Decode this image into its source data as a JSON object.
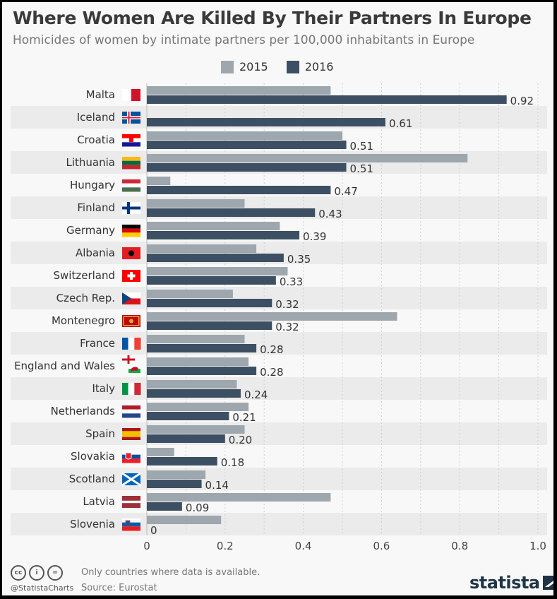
{
  "title": "Where Women Are Killed By Their Partners In Europe",
  "subtitle": "Homicides of women by intimate partners per 100,000 inhabitants in Europe",
  "colors": {
    "2015": "#9ea6ae",
    "2016": "#3d5063",
    "row_alt": "#ebebeb",
    "background": "#f8f8f8"
  },
  "chart_data": {
    "type": "bar",
    "orientation": "horizontal",
    "title": "Where Women Are Killed By Their Partners In Europe",
    "subtitle": "Homicides of women by intimate partners per 100,000 inhabitants in Europe",
    "categories": [
      "Malta",
      "Iceland",
      "Croatia",
      "Lithuania",
      "Hungary",
      "Finland",
      "Germany",
      "Albania",
      "Switzerland",
      "Czech Rep.",
      "Montenegro",
      "France",
      "England and Wales",
      "Italy",
      "Netherlands",
      "Spain",
      "Slovakia",
      "Scotland",
      "Latvia",
      "Slovenia"
    ],
    "flags": [
      "malta-flag",
      "iceland-flag",
      "croatia-flag",
      "lithuania-flag",
      "hungary-flag",
      "finland-flag",
      "germany-flag",
      "albania-flag",
      "switzerland-flag",
      "czech-flag",
      "montenegro-flag",
      "france-flag",
      "england-wales-flags",
      "italy-flag",
      "netherlands-flag",
      "spain-flag",
      "slovakia-flag",
      "scotland-flag",
      "latvia-flag",
      "slovenia-flag"
    ],
    "series": [
      {
        "name": "2015",
        "values": [
          0.47,
          null,
          0.5,
          0.82,
          0.06,
          0.25,
          0.34,
          0.28,
          0.36,
          0.22,
          0.64,
          0.25,
          0.26,
          0.23,
          0.26,
          0.25,
          0.07,
          0.15,
          0.47,
          0.19
        ]
      },
      {
        "name": "2016",
        "values": [
          0.92,
          0.61,
          0.51,
          0.51,
          0.47,
          0.43,
          0.39,
          0.35,
          0.33,
          0.32,
          0.32,
          0.28,
          0.28,
          0.24,
          0.21,
          0.2,
          0.18,
          0.14,
          0.09,
          0
        ]
      }
    ],
    "data_labels": [
      "0.92",
      "0.61",
      "0.51",
      "0.51",
      "0.47",
      "0.43",
      "0.39",
      "0.35",
      "0.33",
      "0.32",
      "0.32",
      "0.28",
      "0.28",
      "0.24",
      "0.21",
      "0.20",
      "0.18",
      "0.14",
      "0.09",
      "0"
    ],
    "xlim": [
      0,
      1.0
    ],
    "xticks": [
      "0",
      "0.2",
      "0.4",
      "0.6",
      "0.8",
      "1.0"
    ],
    "grid": "vertical dotted every 0.1",
    "legend": "top-center"
  },
  "footer": {
    "note": "Only countries where data is available.",
    "source": "Source: Eurostat",
    "handle": "@StatistaCharts",
    "license_icons": [
      "cc",
      "by",
      "nd"
    ],
    "logo": "statista"
  }
}
